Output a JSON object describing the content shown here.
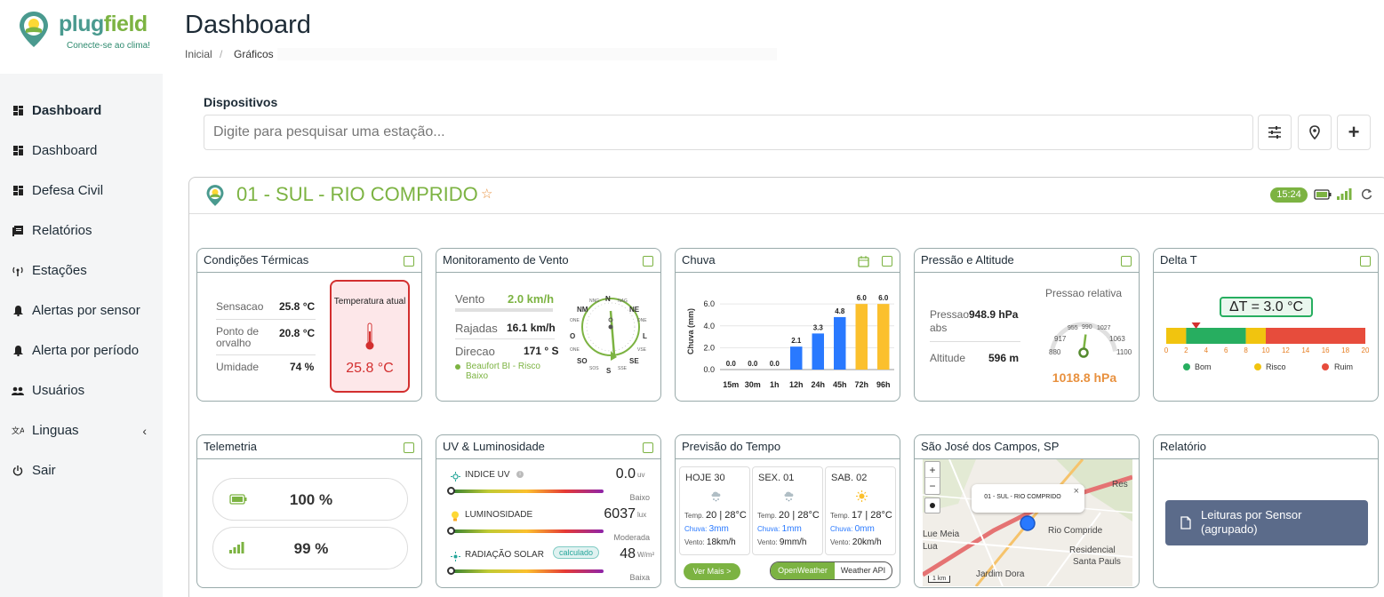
{
  "app": {
    "logo_part1": "plug",
    "logo_part2": "field",
    "tagline": "Conecte-se ao clima!"
  },
  "colors": {
    "brand_green": "#7cb342",
    "brand_teal": "#4a9a8f",
    "alert_red": "#d32f2f",
    "pressure_orange": "#e8913f",
    "bar_blue": "#2979ff",
    "bar_yellow": "#fbc02d",
    "report_button": "#5b6b8a"
  },
  "nav": [
    {
      "label": "Dashboard",
      "icon": "dashboard-icon",
      "active": true
    },
    {
      "label": "Dashboard",
      "icon": "dashboard-icon"
    },
    {
      "label": "Defesa Civil",
      "icon": "dashboard-icon"
    },
    {
      "label": "Relatórios",
      "icon": "report-icon"
    },
    {
      "label": "Estações",
      "icon": "antenna-icon"
    },
    {
      "label": "Alertas por sensor",
      "icon": "bell-icon"
    },
    {
      "label": "Alerta por período",
      "icon": "bell-icon"
    },
    {
      "label": "Usuários",
      "icon": "users-icon"
    },
    {
      "label": "Linguas",
      "icon": "translate-icon",
      "chevron": "‹"
    },
    {
      "label": "Sair",
      "icon": "power-icon"
    }
  ],
  "header": {
    "title": "Dashboard",
    "breadcrumb": [
      "Inicial",
      "Gráficos"
    ]
  },
  "devices": {
    "label": "Dispositivos",
    "placeholder": "Digite para pesquisar uma estação...",
    "buttons": [
      "filter-icon",
      "location-pin-icon",
      "plus-icon"
    ],
    "plus_glyph": "+"
  },
  "station": {
    "name": "01 - SUL - RIO COMPRIDO",
    "time": "15:24",
    "star": "☆",
    "status_icons": [
      "battery-icon",
      "signal-icon",
      "refresh-icon"
    ]
  },
  "termicas": {
    "title": "Condições Térmicas",
    "rows": [
      {
        "label": "Sensacao",
        "value": "25.8 °C"
      },
      {
        "label": "Ponto de orvalho",
        "value": "20.8 °C"
      },
      {
        "label": "Umidade",
        "value": "74 %"
      }
    ],
    "box_label": "Temperatura atual",
    "box_value": "25.8 °C"
  },
  "vento": {
    "title": "Monitoramento de Vento",
    "rows": [
      {
        "label": "Vento",
        "value": "2.0 km/h"
      },
      {
        "label": "Rajadas",
        "value": "16.1 km/h"
      },
      {
        "label": "Direcao",
        "value": "171 ° S"
      }
    ],
    "beaufort": "Beaufort BI - Risco Baixo",
    "compass": [
      "N",
      "NE",
      "L",
      "SE",
      "S",
      "SO",
      "O",
      "NM"
    ],
    "compass_minor": [
      "NNG",
      "NAG",
      "DNE",
      "ONE",
      "ONE",
      "VSE",
      "SOS",
      "SSE"
    ]
  },
  "chuva": {
    "title": "Chuva",
    "ylabel": "Chuva (mm)"
  },
  "chart_data": {
    "type": "bar",
    "title": "Chuva",
    "ylabel": "Chuva (mm)",
    "categories": [
      "15m",
      "30m",
      "1h",
      "12h",
      "24h",
      "45h",
      "72h",
      "96h"
    ],
    "values": [
      0.0,
      0.0,
      0.0,
      2.1,
      3.3,
      4.8,
      6.0,
      6.0
    ],
    "labels": [
      "0.0",
      "0.0",
      "0.0",
      "2.1",
      "3.3",
      "4.8",
      "6.0",
      "6.0"
    ],
    "colors": [
      "#2979ff",
      "#2979ff",
      "#2979ff",
      "#2979ff",
      "#2979ff",
      "#2979ff",
      "#fbc02d",
      "#fbc02d"
    ],
    "yticks": [
      "0.0",
      "2.0",
      "4.0",
      "6.0"
    ],
    "ylim": [
      0,
      6.5
    ]
  },
  "pressao": {
    "title": "Pressão e Altitude",
    "gauge_title": "Pressao relativa",
    "rows": [
      {
        "label": "Pressao abs",
        "value": "948.9 hPa"
      },
      {
        "label": "Altitude",
        "value": "596 m"
      }
    ],
    "gauge_ticks": [
      "880",
      "917",
      "955",
      "990",
      "1027",
      "1063",
      "1100"
    ],
    "relative_value": "1018.8 hPa",
    "relative_fraction": 0.63
  },
  "delta": {
    "title": "Delta T",
    "value": "ΔT = 3.0 °C",
    "ticks": [
      "0",
      "2",
      "4",
      "6",
      "8",
      "10",
      "12",
      "14",
      "16",
      "18",
      "20"
    ],
    "marker_value": 3.0,
    "legend": [
      {
        "label": "Bom",
        "color": "#27ae60"
      },
      {
        "label": "Risco",
        "color": "#f1c40f"
      },
      {
        "label": "Ruim",
        "color": "#e74c3c"
      }
    ]
  },
  "telemetria": {
    "title": "Telemetria",
    "battery": "100 %",
    "signal": "99 %"
  },
  "uv": {
    "title": "UV & Luminosidade",
    "rows": [
      {
        "label": "INDICE UV",
        "value": "0.0",
        "unit": "uv",
        "level": "Baixo"
      },
      {
        "label": "LUMINOSIDADE",
        "value": "6037",
        "unit": "lux",
        "level": "Moderada"
      },
      {
        "label": "RADIAÇÃO SOLAR",
        "badge": "calculado",
        "value": "48",
        "unit": "W/m²",
        "level": "Baixa"
      }
    ]
  },
  "previsao": {
    "title": "Previsão do Tempo",
    "days": [
      {
        "day": "HOJE 30",
        "temp_label": "Temp.",
        "temp": "20 | 28°C",
        "rain_label": "Chuva:",
        "rain": "3mm",
        "wind_label": "Vento:",
        "wind": "18km/h",
        "icon": "snow-cloud-icon"
      },
      {
        "day": "SEX. 01",
        "temp_label": "Temp.",
        "temp": "20 | 28°C",
        "rain_label": "Chuva:",
        "rain": "1mm",
        "wind_label": "Vento:",
        "wind": "9mm/h",
        "icon": "snow-cloud-icon"
      },
      {
        "day": "SAB. 02",
        "temp_label": "Temp.",
        "temp": "17 | 28°C",
        "rain_label": "Chuva:",
        "rain": "0mm",
        "wind_label": "Vento:",
        "wind": "20km/h",
        "icon": "sun-icon"
      }
    ],
    "more": "Ver Mais >",
    "tabs": [
      "OpenWeather",
      "Weather API"
    ]
  },
  "mapa": {
    "title": "São José dos Campos, SP",
    "popup": "01 - SUL - RIO COMPRIDO",
    "zoom_in": "+",
    "zoom_out": "−",
    "labels": [
      "Res",
      "Rio Compride",
      "Residencial",
      "Santa Pauls",
      "Lue Meia",
      "Lua",
      "Jardim Dora",
      "1 km"
    ],
    "tooltip_close": "×"
  },
  "relatorio": {
    "title": "Relatório",
    "button": "Leituras por Sensor (agrupado)"
  }
}
